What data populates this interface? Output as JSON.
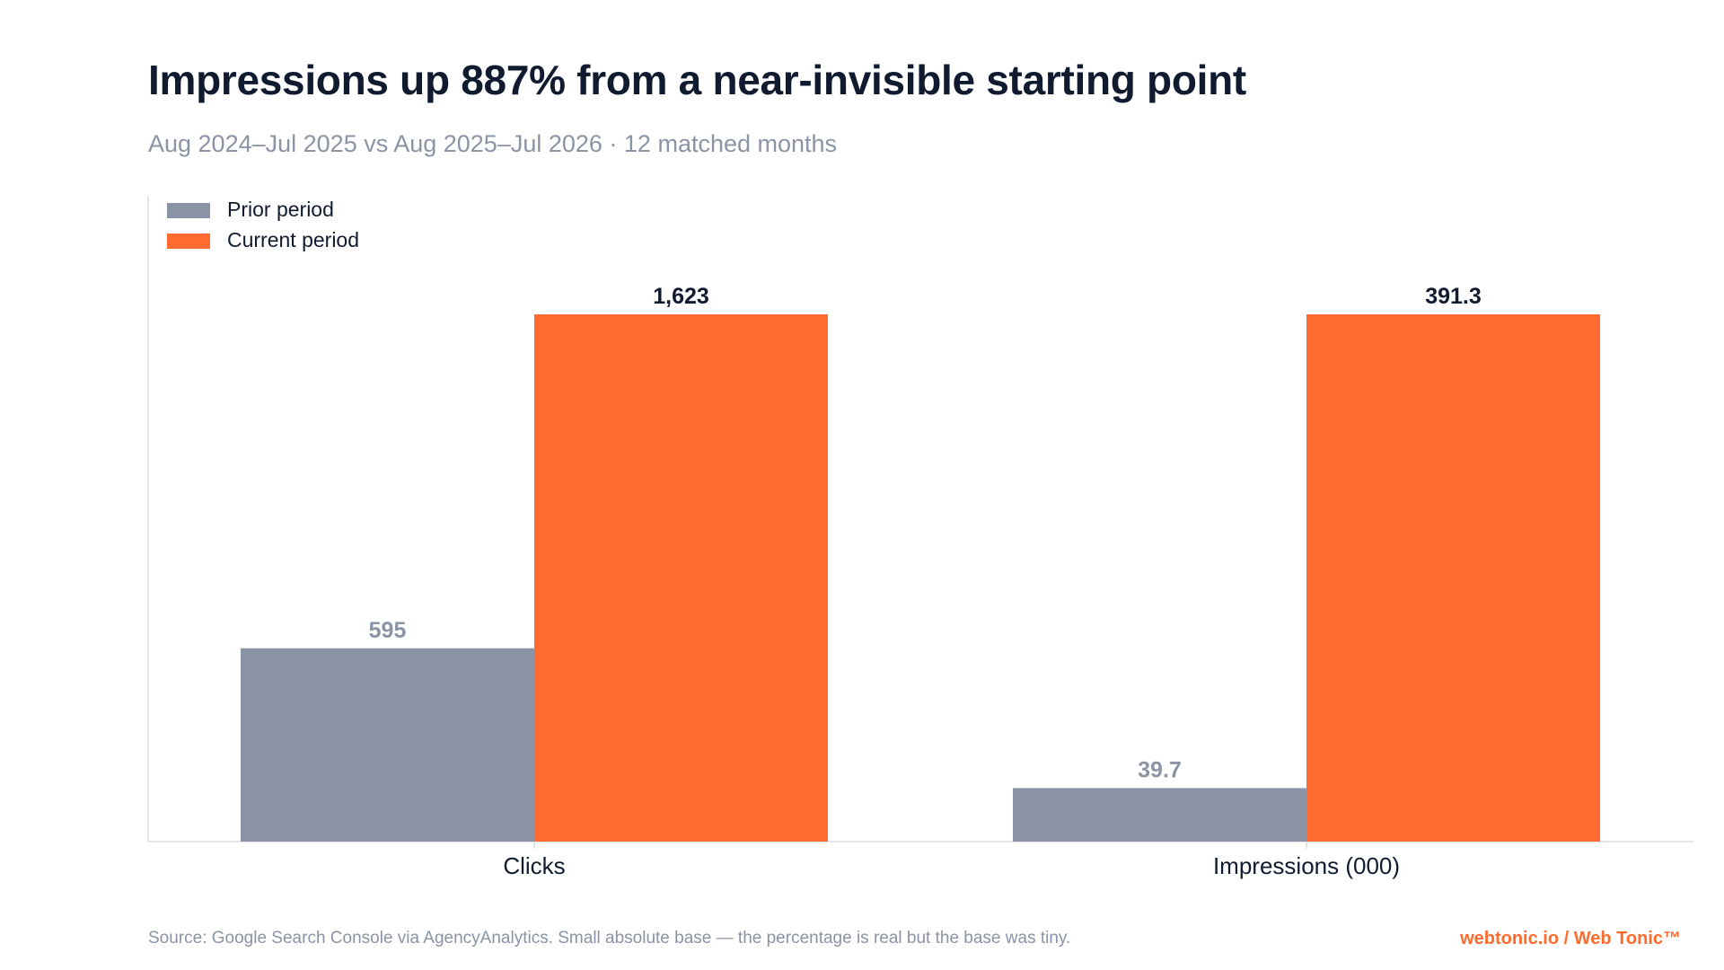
{
  "title": "Impressions up 887% from a near-invisible starting point",
  "subtitle": "Aug 2024–Jul 2025 vs Aug 2025–Jul 2026 · 12 matched months",
  "footer": {
    "source": "Source: Google Search Console via AgencyAnalytics. Small absolute base — the percentage is real but the base was tiny.",
    "brand": "webtonic.io / Web Tonic™"
  },
  "colors": {
    "prior": "#8b93a6",
    "current": "#ff6b2f",
    "title": "#111b30",
    "muted": "#8b93a5",
    "axis": "#dcdde2"
  },
  "chart_data": {
    "type": "bar",
    "categories": [
      "Clicks",
      "Impressions (000)"
    ],
    "series": [
      {
        "name": "Prior period",
        "values": [
          595,
          39.7
        ],
        "labels": [
          "595",
          "39.7"
        ]
      },
      {
        "name": "Current period",
        "values": [
          1623,
          391.3
        ],
        "labels": [
          "1,623",
          "391.3"
        ]
      }
    ],
    "scale": "each category normalized to its own maximum",
    "legend": "top-left",
    "grid": false,
    "xlabel": "",
    "ylabel": ""
  }
}
